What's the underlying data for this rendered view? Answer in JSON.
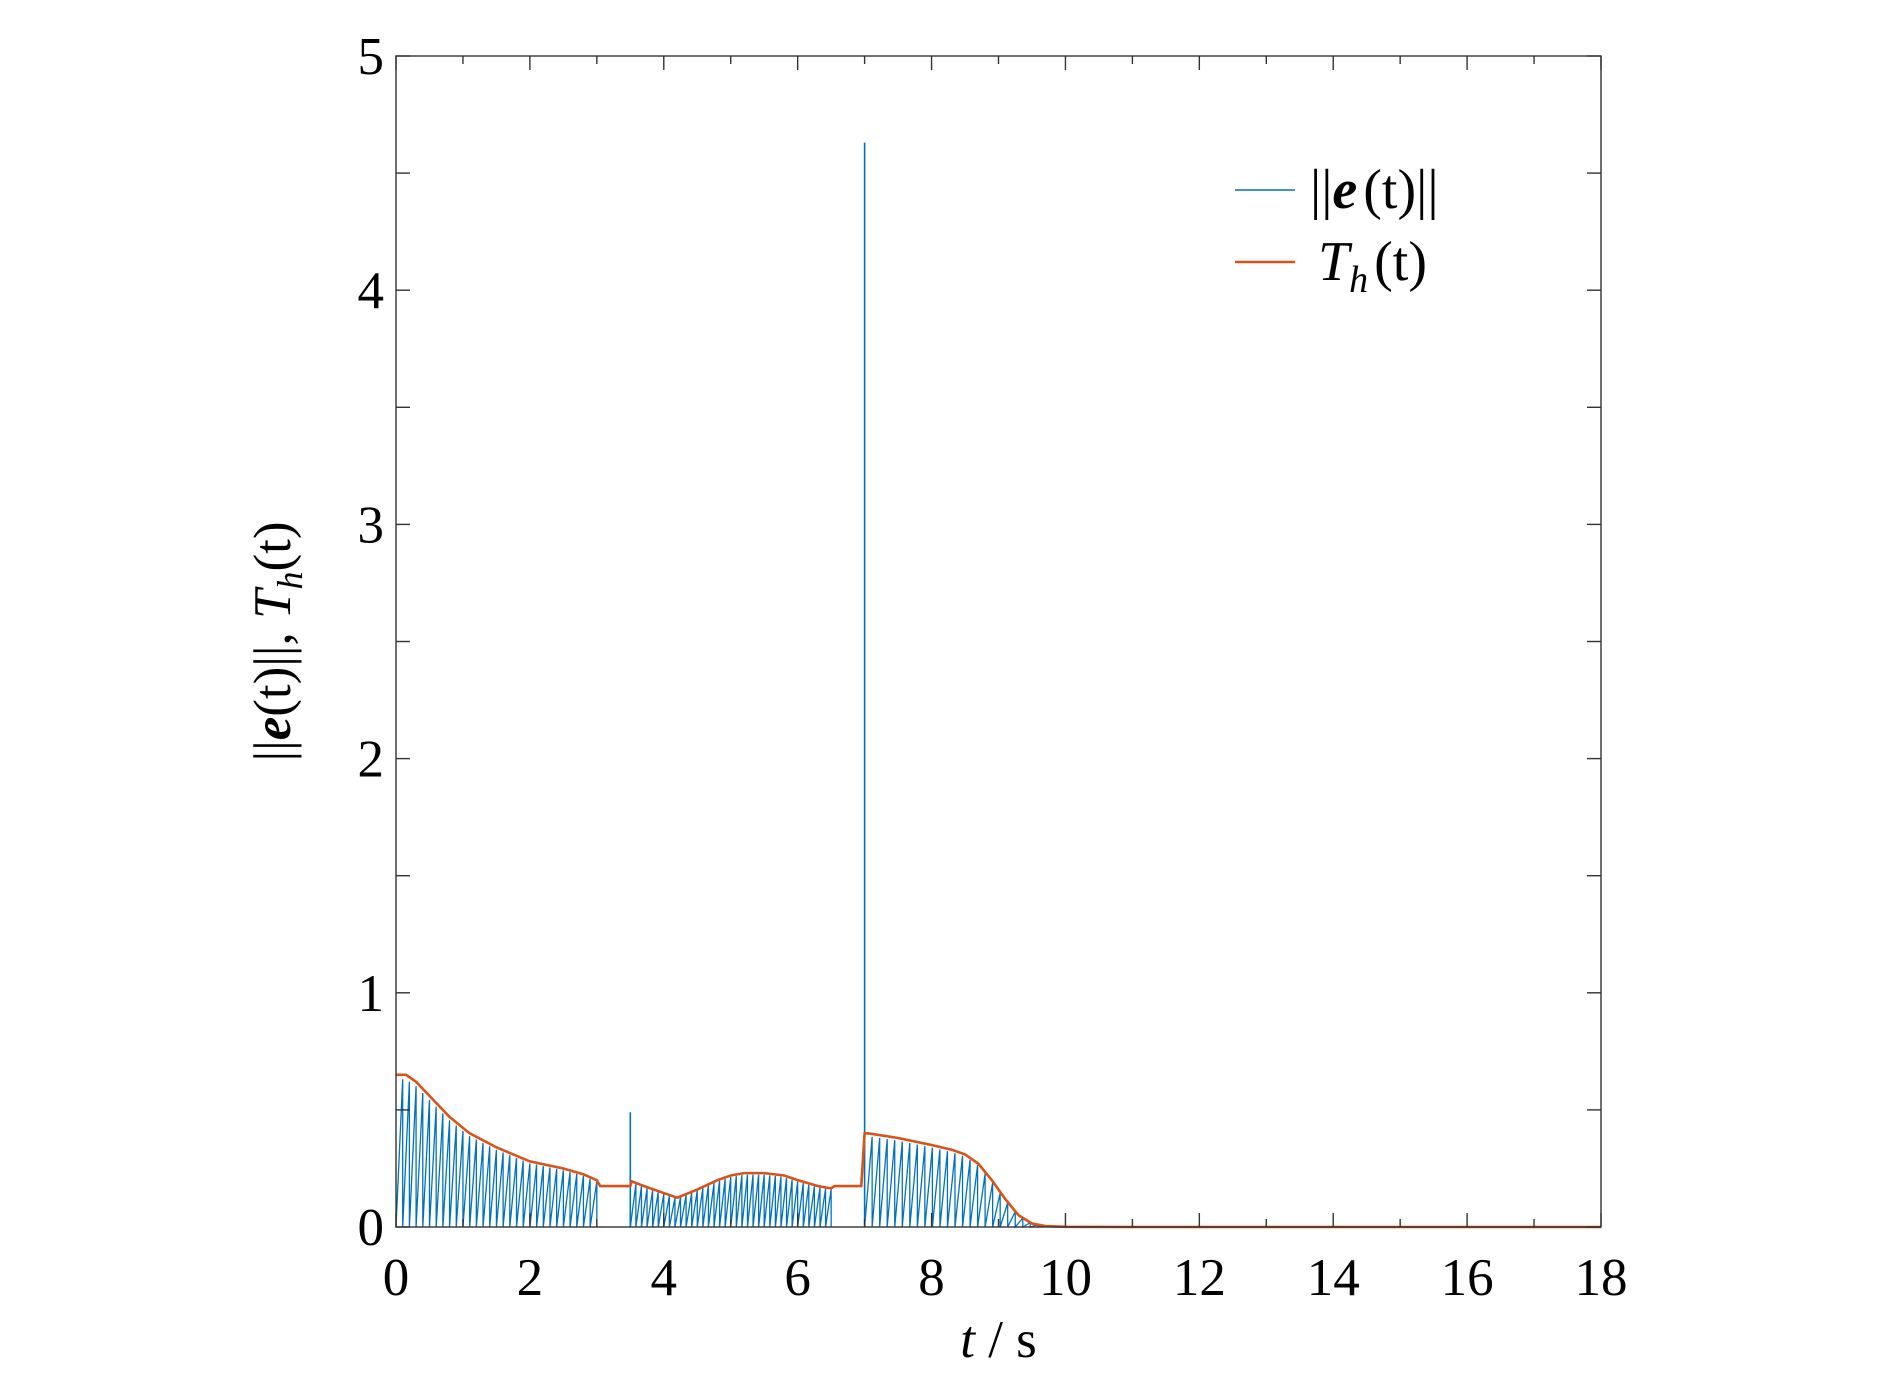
{
  "chart_data": {
    "type": "line",
    "title": "",
    "xlabel": "t / s",
    "ylabel": "||e(t)||, T_h(t)",
    "xlim": [
      0,
      18
    ],
    "ylim": [
      0,
      5
    ],
    "xticks": [
      0,
      2,
      4,
      6,
      8,
      10,
      12,
      14,
      16,
      18
    ],
    "yticks": [
      0,
      1,
      2,
      3,
      4,
      5
    ],
    "xtick_labels": [
      "0",
      "2",
      "4",
      "6",
      "8",
      "10",
      "12",
      "14",
      "16",
      "18"
    ],
    "ytick_labels": [
      "0",
      "1",
      "2",
      "3",
      "4",
      "5"
    ],
    "minor_y_ticks": [
      0.5,
      1.5,
      2.5,
      3.5,
      4.5
    ],
    "grid": false,
    "legend_position": "top-right",
    "colors": {
      "e_norm": "#0072BD",
      "threshold": "#D95319"
    },
    "legend": {
      "e_norm": {
        "sym": "||",
        "fn": "e",
        "arg": "(t)",
        "tail": "||"
      },
      "threshold": {
        "base": "T",
        "sub": "h",
        "arg": "(t)"
      }
    },
    "axis_titles": {
      "x": {
        "var": "t",
        "rest": " / s"
      },
      "y": {
        "pre": "||",
        "bold": "e",
        "mid": "(t)||, ",
        "base": "T",
        "sub": "h",
        "post": "(t)"
      }
    },
    "series": [
      {
        "name": "T_h(t)",
        "color": "#D95319",
        "x": [
          0,
          0.15,
          0.3,
          0.5,
          0.8,
          1.1,
          1.5,
          2.0,
          2.5,
          2.8,
          3.0,
          3.05,
          3.5,
          3.52,
          3.7,
          4.0,
          4.2,
          4.5,
          4.8,
          5.0,
          5.2,
          5.5,
          5.8,
          6.0,
          6.3,
          6.5,
          6.55,
          6.95,
          7.0,
          7.05,
          7.5,
          8.0,
          8.3,
          8.5,
          8.7,
          8.9,
          9.1,
          9.3,
          9.5,
          9.7,
          10.0,
          11.0,
          12.0,
          14.0,
          16.0,
          18.0
        ],
        "values": [
          0.65,
          0.65,
          0.62,
          0.56,
          0.47,
          0.4,
          0.34,
          0.28,
          0.25,
          0.225,
          0.2,
          0.175,
          0.175,
          0.195,
          0.175,
          0.145,
          0.125,
          0.16,
          0.2,
          0.22,
          0.23,
          0.23,
          0.22,
          0.2,
          0.175,
          0.165,
          0.175,
          0.175,
          0.4,
          0.4,
          0.38,
          0.35,
          0.33,
          0.31,
          0.27,
          0.2,
          0.12,
          0.05,
          0.015,
          0.004,
          0.001,
          0,
          0,
          0,
          0,
          0
        ]
      },
      {
        "name": "||e(t)||",
        "color": "#0072BD",
        "sawtooth_segments": [
          {
            "t_start": 0.0,
            "t_end": 3.0,
            "n_teeth": 30
          },
          {
            "t_start": 3.5,
            "t_end": 6.5,
            "n_teeth": 36
          },
          {
            "t_start": 7.0,
            "t_end": 9.7,
            "n_teeth": 24
          }
        ],
        "spikes": [
          {
            "x": 3.5,
            "y": 0.49
          },
          {
            "x": 7.0,
            "y": 4.63
          }
        ]
      }
    ]
  }
}
